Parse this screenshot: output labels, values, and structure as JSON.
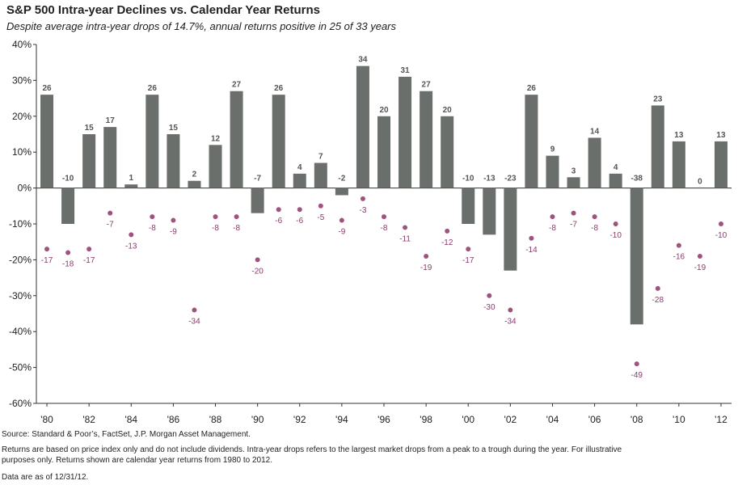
{
  "header": {
    "title": "S&P 500 Intra-year Declines vs. Calendar Year Returns",
    "subtitle": "Despite average intra-year drops of 14.7%, annual returns positive in 25 of 33 years"
  },
  "footer": {
    "source": "Source: Standard & Poor’s, FactSet, J.P. Morgan Asset Management.",
    "note": "Returns are based on price index only and do not include dividends. Intra-year drops refers to the largest market drops from a peak to a trough during the year. For illustrative purposes only. Returns shown are calendar year returns from 1980 to 2012.",
    "date": "Data are as of 12/31/12."
  },
  "chart_data": {
    "type": "bar",
    "categories": [
      1980,
      1981,
      1982,
      1983,
      1984,
      1985,
      1986,
      1987,
      1988,
      1989,
      1990,
      1991,
      1992,
      1993,
      1994,
      1995,
      1996,
      1997,
      1998,
      1999,
      2000,
      2001,
      2002,
      2003,
      2004,
      2005,
      2006,
      2007,
      2008,
      2009,
      2010,
      2011,
      2012
    ],
    "x_tick_labels": [
      "'80",
      "'82",
      "'84",
      "'86",
      "'88",
      "'90",
      "'92",
      "'94",
      "'96",
      "'98",
      "'00",
      "'02",
      "'04",
      "'06",
      "'08",
      "'10",
      "'12"
    ],
    "series": [
      {
        "type": "bar",
        "values": [
          26,
          -10,
          15,
          17,
          1,
          26,
          15,
          2,
          12,
          27,
          -7,
          26,
          4,
          7,
          -2,
          34,
          20,
          31,
          27,
          20,
          -10,
          -13,
          -23,
          26,
          9,
          3,
          14,
          4,
          -38,
          23,
          13,
          0,
          13
        ],
        "color": "#6b6f6c"
      },
      {
        "type": "scatter",
        "values": [
          -17,
          -18,
          -17,
          -7,
          -13,
          -8,
          -9,
          -34,
          -8,
          -8,
          -20,
          -6,
          -6,
          -5,
          -9,
          -3,
          -8,
          -11,
          -19,
          -12,
          -17,
          -30,
          -34,
          -14,
          -8,
          -7,
          -8,
          -10,
          -49,
          -28,
          -16,
          -19,
          -10
        ],
        "color": "#a0527e",
        "label_color": "#8b3a6b"
      }
    ],
    "ylim": [
      -60,
      40
    ],
    "yticks": [
      40,
      30,
      20,
      10,
      0,
      -10,
      -20,
      -30,
      -40,
      -50,
      -60
    ],
    "ytick_format": "%",
    "grid": false
  }
}
